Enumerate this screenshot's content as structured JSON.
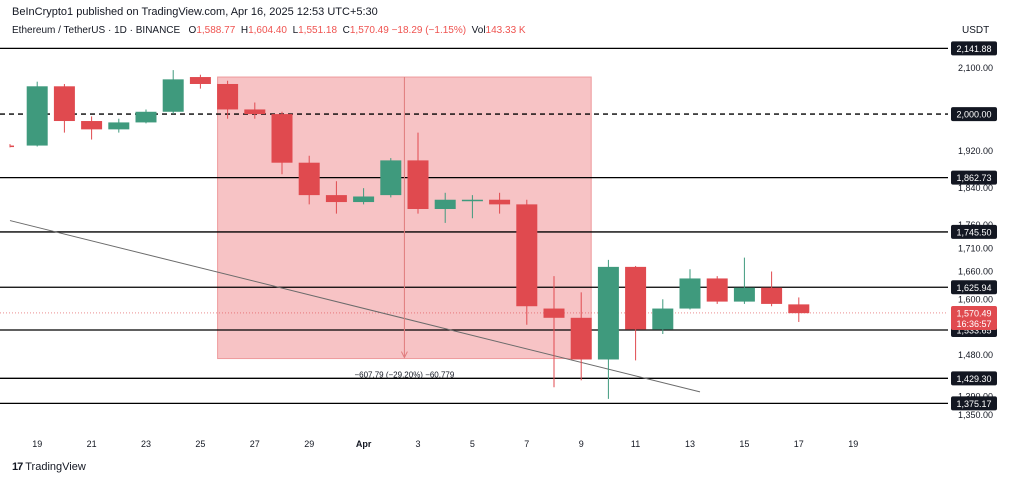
{
  "header": {
    "publisher": "BeInCrypto1 published on TradingView.com, Apr 16, 2025 12:53 UTC+5:30",
    "symbol": "Ethereum / TetherUS · 1D · BINANCE",
    "ohlc": {
      "o_label": "O",
      "o_value": "1,588.77",
      "h_label": "H",
      "h_value": "1,604.40",
      "l_label": "L",
      "l_value": "1,551.18",
      "c_label": "C",
      "c_value": "1,570.49",
      "change": "−18.29 (−1.15%)",
      "vol_label": "Vol",
      "vol_value": "143.33 K"
    },
    "currency": "USDT"
  },
  "footer": {
    "brand_logo": "17",
    "brand": "TradingView"
  },
  "colors": {
    "up": "#3f9a7d",
    "down": "#e04a4f",
    "zone": "#f7c3c5",
    "zone_border": "#ee9a9c",
    "line": "#000000"
  },
  "chart_data": {
    "type": "candlestick",
    "ylim": [
      1322,
      2160
    ],
    "x_ticks": [
      "19",
      "21",
      "23",
      "25",
      "27",
      "29",
      "Apr",
      "3",
      "5",
      "7",
      "9",
      "11",
      "13",
      "15",
      "17",
      "19"
    ],
    "y_ticks": [
      "2,100.00",
      "1,920.00",
      "1,840.00",
      "1,760.00",
      "1,710.00",
      "1,660.00",
      "1,600.00",
      "1,480.00",
      "1,390.00",
      "1,350.00"
    ],
    "y_tick_values": [
      2100,
      1920,
      1840,
      1760,
      1710,
      1660,
      1600,
      1480,
      1390,
      1350
    ],
    "candles": [
      {
        "date": "Mar 18",
        "open": 1932,
        "high": 1935,
        "low": 1928,
        "close": 1930
      },
      {
        "date": "Mar 19",
        "open": 1932,
        "high": 2070,
        "low": 1930,
        "close": 2060
      },
      {
        "date": "Mar 20",
        "open": 2060,
        "high": 2065,
        "low": 1960,
        "close": 1985
      },
      {
        "date": "Mar 21",
        "open": 1985,
        "high": 1995,
        "low": 1945,
        "close": 1967
      },
      {
        "date": "Mar 22",
        "open": 1967,
        "high": 1990,
        "low": 1960,
        "close": 1982
      },
      {
        "date": "Mar 23",
        "open": 1982,
        "high": 2010,
        "low": 1980,
        "close": 2005
      },
      {
        "date": "Mar 24",
        "open": 2005,
        "high": 2095,
        "low": 2000,
        "close": 2075
      },
      {
        "date": "Mar 25",
        "open": 2080,
        "high": 2085,
        "low": 2055,
        "close": 2065
      },
      {
        "date": "Mar 26",
        "open": 2065,
        "high": 2072,
        "low": 1990,
        "close": 2010
      },
      {
        "date": "Mar 27",
        "open": 2010,
        "high": 2025,
        "low": 1990,
        "close": 2000
      },
      {
        "date": "Mar 28",
        "open": 2000,
        "high": 2005,
        "low": 1870,
        "close": 1895
      },
      {
        "date": "Mar 29",
        "open": 1895,
        "high": 1910,
        "low": 1805,
        "close": 1825
      },
      {
        "date": "Mar 30",
        "open": 1825,
        "high": 1855,
        "low": 1785,
        "close": 1810
      },
      {
        "date": "Mar 31",
        "open": 1810,
        "high": 1840,
        "low": 1805,
        "close": 1822
      },
      {
        "date": "Apr 1",
        "open": 1825,
        "high": 1905,
        "low": 1820,
        "close": 1900
      },
      {
        "date": "Apr 2",
        "open": 1900,
        "high": 1960,
        "low": 1785,
        "close": 1795
      },
      {
        "date": "Apr 3",
        "open": 1795,
        "high": 1830,
        "low": 1765,
        "close": 1815
      },
      {
        "date": "Apr 4",
        "open": 1815,
        "high": 1825,
        "low": 1775,
        "close": 1815
      },
      {
        "date": "Apr 5",
        "open": 1815,
        "high": 1830,
        "low": 1785,
        "close": 1805
      },
      {
        "date": "Apr 6",
        "open": 1805,
        "high": 1815,
        "low": 1545,
        "close": 1585
      },
      {
        "date": "Apr 7",
        "open": 1580,
        "high": 1650,
        "low": 1410,
        "close": 1560
      },
      {
        "date": "Apr 8",
        "open": 1560,
        "high": 1615,
        "low": 1425,
        "close": 1470
      },
      {
        "date": "Apr 9",
        "open": 1470,
        "high": 1685,
        "low": 1385,
        "close": 1670
      },
      {
        "date": "Apr 10",
        "open": 1670,
        "high": 1672,
        "low": 1468,
        "close": 1535
      },
      {
        "date": "Apr 11",
        "open": 1535,
        "high": 1600,
        "low": 1525,
        "close": 1580
      },
      {
        "date": "Apr 12",
        "open": 1580,
        "high": 1665,
        "low": 1578,
        "close": 1645
      },
      {
        "date": "Apr 13",
        "open": 1645,
        "high": 1650,
        "low": 1590,
        "close": 1595
      },
      {
        "date": "Apr 14",
        "open": 1595,
        "high": 1690,
        "low": 1590,
        "close": 1625
      },
      {
        "date": "Apr 15",
        "open": 1625,
        "high": 1660,
        "low": 1585,
        "close": 1590
      },
      {
        "date": "Apr 16",
        "open": 1589,
        "high": 1604,
        "low": 1551,
        "close": 1570
      }
    ],
    "horizontal_levels": [
      {
        "value": 2141.88,
        "label": "2,141.88",
        "style": "solid"
      },
      {
        "value": 2000.0,
        "label": "2,000.00",
        "style": "dashed"
      },
      {
        "value": 1862.73,
        "label": "1,862.73",
        "style": "solid"
      },
      {
        "value": 1745.5,
        "label": "1,745.50",
        "style": "solid"
      },
      {
        "value": 1625.94,
        "label": "1,625.94",
        "style": "solid"
      },
      {
        "value": 1533.65,
        "label": "1,533.65",
        "style": "solid"
      },
      {
        "value": 1429.3,
        "label": "1,429.30",
        "style": "solid"
      },
      {
        "value": 1375.17,
        "label": "1,375.17",
        "style": "solid"
      }
    ],
    "price_label": {
      "value": 1570.49,
      "label": "1,570.49",
      "countdown": "16:36:57"
    },
    "trendline": {
      "from": {
        "date": "Mar 18",
        "value": 1770
      },
      "to": {
        "date": "Apr 12",
        "value": 1400
      }
    },
    "measure": {
      "from_date": "Mar 26",
      "to_date": "Apr 8",
      "high": 2080,
      "low": 1472,
      "label": "−607.79 (−29.20%) −60,779"
    }
  }
}
